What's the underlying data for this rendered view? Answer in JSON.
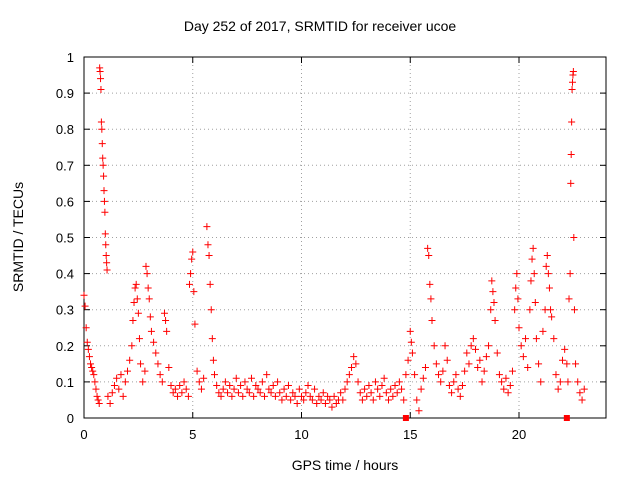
{
  "chart_data": {
    "type": "scatter",
    "title": "Day 252 of 2017, SRMTID for receiver ucoe",
    "xlabel": "GPS time / hours",
    "ylabel": "SRMTID / TECUs",
    "xlim": [
      0,
      24
    ],
    "ylim": [
      0,
      1
    ],
    "xticks": [
      "0",
      "5",
      "10",
      "15",
      "20"
    ],
    "yticks": [
      "0",
      "0.1",
      "0.2",
      "0.3",
      "0.4",
      "0.5",
      "0.6",
      "0.7",
      "0.8",
      "0.9",
      "1"
    ],
    "grid": true,
    "marker": "+",
    "color": "#ff0000",
    "series": [
      {
        "name": "SRMTID",
        "points": [
          [
            0.0,
            0.34
          ],
          [
            0.05,
            0.31
          ],
          [
            0.1,
            0.25
          ],
          [
            0.15,
            0.21
          ],
          [
            0.2,
            0.19
          ],
          [
            0.25,
            0.17
          ],
          [
            0.3,
            0.15
          ],
          [
            0.35,
            0.14
          ],
          [
            0.4,
            0.13
          ],
          [
            0.45,
            0.12
          ],
          [
            0.5,
            0.1
          ],
          [
            0.55,
            0.08
          ],
          [
            0.6,
            0.06
          ],
          [
            0.65,
            0.05
          ],
          [
            0.7,
            0.04
          ],
          [
            0.72,
            0.97
          ],
          [
            0.74,
            0.96
          ],
          [
            0.76,
            0.94
          ],
          [
            0.78,
            0.91
          ],
          [
            0.8,
            0.82
          ],
          [
            0.82,
            0.8
          ],
          [
            0.84,
            0.76
          ],
          [
            0.86,
            0.72
          ],
          [
            0.88,
            0.7
          ],
          [
            0.9,
            0.67
          ],
          [
            0.92,
            0.63
          ],
          [
            0.94,
            0.6
          ],
          [
            0.96,
            0.57
          ],
          [
            0.98,
            0.51
          ],
          [
            1.0,
            0.48
          ],
          [
            1.02,
            0.45
          ],
          [
            1.04,
            0.43
          ],
          [
            1.06,
            0.41
          ],
          [
            1.1,
            0.06
          ],
          [
            1.2,
            0.04
          ],
          [
            1.3,
            0.07
          ],
          [
            1.4,
            0.09
          ],
          [
            1.5,
            0.11
          ],
          [
            1.6,
            0.08
          ],
          [
            1.7,
            0.12
          ],
          [
            1.8,
            0.06
          ],
          [
            1.9,
            0.1
          ],
          [
            2.0,
            0.13
          ],
          [
            2.1,
            0.16
          ],
          [
            2.2,
            0.2
          ],
          [
            2.25,
            0.27
          ],
          [
            2.3,
            0.32
          ],
          [
            2.35,
            0.36
          ],
          [
            2.4,
            0.37
          ],
          [
            2.45,
            0.33
          ],
          [
            2.5,
            0.29
          ],
          [
            2.55,
            0.22
          ],
          [
            2.6,
            0.15
          ],
          [
            2.7,
            0.1
          ],
          [
            2.8,
            0.13
          ],
          [
            2.85,
            0.42
          ],
          [
            2.9,
            0.4
          ],
          [
            2.95,
            0.36
          ],
          [
            3.0,
            0.33
          ],
          [
            3.05,
            0.28
          ],
          [
            3.1,
            0.24
          ],
          [
            3.2,
            0.21
          ],
          [
            3.3,
            0.18
          ],
          [
            3.4,
            0.15
          ],
          [
            3.5,
            0.12
          ],
          [
            3.6,
            0.1
          ],
          [
            3.7,
            0.29
          ],
          [
            3.75,
            0.27
          ],
          [
            3.8,
            0.24
          ],
          [
            3.9,
            0.14
          ],
          [
            4.0,
            0.09
          ],
          [
            4.1,
            0.07
          ],
          [
            4.2,
            0.08
          ],
          [
            4.3,
            0.06
          ],
          [
            4.4,
            0.09
          ],
          [
            4.5,
            0.07
          ],
          [
            4.6,
            0.1
          ],
          [
            4.7,
            0.08
          ],
          [
            4.8,
            0.06
          ],
          [
            4.85,
            0.37
          ],
          [
            4.9,
            0.4
          ],
          [
            4.95,
            0.44
          ],
          [
            5.0,
            0.46
          ],
          [
            5.05,
            0.35
          ],
          [
            5.1,
            0.26
          ],
          [
            5.2,
            0.13
          ],
          [
            5.3,
            0.1
          ],
          [
            5.4,
            0.08
          ],
          [
            5.5,
            0.11
          ],
          [
            5.65,
            0.53
          ],
          [
            5.7,
            0.48
          ],
          [
            5.75,
            0.45
          ],
          [
            5.8,
            0.37
          ],
          [
            5.85,
            0.3
          ],
          [
            5.9,
            0.22
          ],
          [
            5.95,
            0.16
          ],
          [
            6.0,
            0.12
          ],
          [
            6.1,
            0.09
          ],
          [
            6.2,
            0.07
          ],
          [
            6.3,
            0.06
          ],
          [
            6.4,
            0.08
          ],
          [
            6.5,
            0.1
          ],
          [
            6.6,
            0.07
          ],
          [
            6.7,
            0.09
          ],
          [
            6.8,
            0.06
          ],
          [
            6.9,
            0.08
          ],
          [
            7.0,
            0.11
          ],
          [
            7.1,
            0.07
          ],
          [
            7.2,
            0.09
          ],
          [
            7.3,
            0.06
          ],
          [
            7.4,
            0.1
          ],
          [
            7.5,
            0.08
          ],
          [
            7.6,
            0.07
          ],
          [
            7.7,
            0.11
          ],
          [
            7.8,
            0.06
          ],
          [
            7.9,
            0.09
          ],
          [
            8.0,
            0.08
          ],
          [
            8.1,
            0.07
          ],
          [
            8.2,
            0.1
          ],
          [
            8.3,
            0.06
          ],
          [
            8.4,
            0.12
          ],
          [
            8.5,
            0.08
          ],
          [
            8.6,
            0.07
          ],
          [
            8.7,
            0.09
          ],
          [
            8.8,
            0.06
          ],
          [
            8.9,
            0.1
          ],
          [
            9.0,
            0.07
          ],
          [
            9.1,
            0.05
          ],
          [
            9.2,
            0.08
          ],
          [
            9.3,
            0.06
          ],
          [
            9.4,
            0.09
          ],
          [
            9.5,
            0.05
          ],
          [
            9.6,
            0.07
          ],
          [
            9.7,
            0.06
          ],
          [
            9.8,
            0.04
          ],
          [
            9.9,
            0.08
          ],
          [
            10.0,
            0.06
          ],
          [
            10.1,
            0.05
          ],
          [
            10.2,
            0.07
          ],
          [
            10.3,
            0.09
          ],
          [
            10.4,
            0.06
          ],
          [
            10.5,
            0.05
          ],
          [
            10.6,
            0.08
          ],
          [
            10.7,
            0.04
          ],
          [
            10.8,
            0.06
          ],
          [
            10.9,
            0.05
          ],
          [
            11.0,
            0.07
          ],
          [
            11.1,
            0.04
          ],
          [
            11.2,
            0.06
          ],
          [
            11.3,
            0.05
          ],
          [
            11.4,
            0.03
          ],
          [
            11.5,
            0.06
          ],
          [
            11.6,
            0.04
          ],
          [
            11.7,
            0.05
          ],
          [
            11.8,
            0.07
          ],
          [
            11.9,
            0.05
          ],
          [
            12.0,
            0.08
          ],
          [
            12.1,
            0.1
          ],
          [
            12.2,
            0.12
          ],
          [
            12.3,
            0.14
          ],
          [
            12.4,
            0.17
          ],
          [
            12.5,
            0.15
          ],
          [
            12.6,
            0.1
          ],
          [
            12.7,
            0.07
          ],
          [
            12.8,
            0.05
          ],
          [
            12.9,
            0.08
          ],
          [
            13.0,
            0.06
          ],
          [
            13.1,
            0.09
          ],
          [
            13.2,
            0.07
          ],
          [
            13.3,
            0.05
          ],
          [
            13.4,
            0.1
          ],
          [
            13.5,
            0.08
          ],
          [
            13.6,
            0.06
          ],
          [
            13.7,
            0.09
          ],
          [
            13.8,
            0.11
          ],
          [
            13.9,
            0.07
          ],
          [
            14.0,
            0.05
          ],
          [
            14.1,
            0.08
          ],
          [
            14.2,
            0.06
          ],
          [
            14.3,
            0.09
          ],
          [
            14.4,
            0.07
          ],
          [
            14.5,
            0.1
          ],
          [
            14.6,
            0.08
          ],
          [
            14.7,
            0.05
          ],
          [
            14.8,
            0.12
          ],
          [
            14.9,
            0.16
          ],
          [
            15.0,
            0.24
          ],
          [
            15.05,
            0.21
          ],
          [
            15.1,
            0.18
          ],
          [
            15.2,
            0.12
          ],
          [
            15.3,
            0.05
          ],
          [
            15.4,
            0.02
          ],
          [
            15.5,
            0.08
          ],
          [
            15.6,
            0.11
          ],
          [
            15.7,
            0.14
          ],
          [
            15.8,
            0.47
          ],
          [
            15.85,
            0.45
          ],
          [
            15.9,
            0.37
          ],
          [
            15.95,
            0.33
          ],
          [
            16.0,
            0.27
          ],
          [
            16.1,
            0.2
          ],
          [
            16.2,
            0.15
          ],
          [
            16.3,
            0.12
          ],
          [
            16.4,
            0.1
          ],
          [
            16.5,
            0.13
          ],
          [
            16.6,
            0.2
          ],
          [
            16.7,
            0.16
          ],
          [
            16.8,
            0.09
          ],
          [
            16.9,
            0.07
          ],
          [
            17.0,
            0.1
          ],
          [
            17.1,
            0.12
          ],
          [
            17.2,
            0.08
          ],
          [
            17.3,
            0.06
          ],
          [
            17.4,
            0.09
          ],
          [
            17.5,
            0.13
          ],
          [
            17.6,
            0.18
          ],
          [
            17.7,
            0.15
          ],
          [
            17.8,
            0.2
          ],
          [
            17.9,
            0.22
          ],
          [
            18.0,
            0.19
          ],
          [
            18.1,
            0.14
          ],
          [
            18.2,
            0.16
          ],
          [
            18.3,
            0.1
          ],
          [
            18.4,
            0.13
          ],
          [
            18.5,
            0.17
          ],
          [
            18.6,
            0.2
          ],
          [
            18.7,
            0.3
          ],
          [
            18.75,
            0.38
          ],
          [
            18.8,
            0.35
          ],
          [
            18.85,
            0.32
          ],
          [
            18.9,
            0.27
          ],
          [
            19.0,
            0.18
          ],
          [
            19.1,
            0.12
          ],
          [
            19.2,
            0.1
          ],
          [
            19.3,
            0.08
          ],
          [
            19.4,
            0.11
          ],
          [
            19.5,
            0.07
          ],
          [
            19.6,
            0.09
          ],
          [
            19.7,
            0.13
          ],
          [
            19.8,
            0.3
          ],
          [
            19.85,
            0.36
          ],
          [
            19.9,
            0.4
          ],
          [
            19.95,
            0.33
          ],
          [
            20.0,
            0.25
          ],
          [
            20.1,
            0.2
          ],
          [
            20.2,
            0.17
          ],
          [
            20.3,
            0.22
          ],
          [
            20.4,
            0.14
          ],
          [
            20.5,
            0.3
          ],
          [
            20.55,
            0.38
          ],
          [
            20.6,
            0.44
          ],
          [
            20.65,
            0.47
          ],
          [
            20.7,
            0.4
          ],
          [
            20.75,
            0.32
          ],
          [
            20.8,
            0.22
          ],
          [
            20.9,
            0.15
          ],
          [
            21.0,
            0.1
          ],
          [
            21.1,
            0.24
          ],
          [
            21.2,
            0.3
          ],
          [
            21.25,
            0.42
          ],
          [
            21.3,
            0.45
          ],
          [
            21.35,
            0.4
          ],
          [
            21.4,
            0.36
          ],
          [
            21.45,
            0.3
          ],
          [
            21.5,
            0.28
          ],
          [
            21.6,
            0.22
          ],
          [
            21.7,
            0.12
          ],
          [
            21.8,
            0.08
          ],
          [
            21.9,
            0.1
          ],
          [
            22.0,
            0.16
          ],
          [
            22.1,
            0.19
          ],
          [
            22.2,
            0.15
          ],
          [
            22.25,
            0.1
          ],
          [
            22.3,
            0.33
          ],
          [
            22.35,
            0.4
          ],
          [
            22.38,
            0.65
          ],
          [
            22.4,
            0.73
          ],
          [
            22.42,
            0.82
          ],
          [
            22.44,
            0.91
          ],
          [
            22.46,
            0.93
          ],
          [
            22.48,
            0.95
          ],
          [
            22.5,
            0.96
          ],
          [
            22.52,
            0.5
          ],
          [
            22.55,
            0.3
          ],
          [
            22.6,
            0.15
          ],
          [
            22.7,
            0.1
          ],
          [
            22.8,
            0.07
          ],
          [
            22.9,
            0.05
          ],
          [
            23.0,
            0.08
          ]
        ]
      }
    ],
    "ground_markers": [
      {
        "x": 14.8,
        "y": 0
      },
      {
        "x": 22.2,
        "y": 0
      }
    ]
  }
}
